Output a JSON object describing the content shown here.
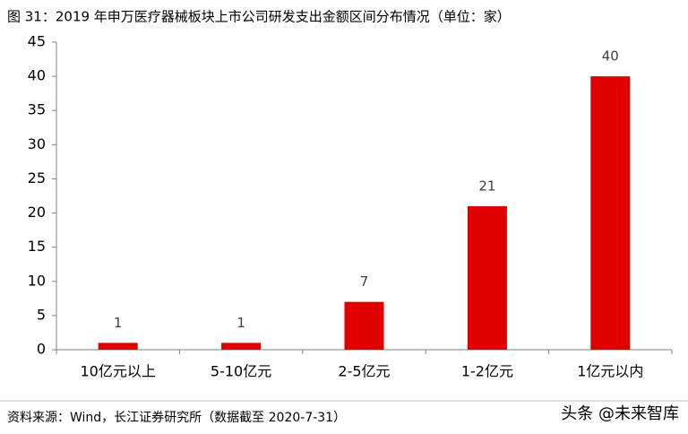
{
  "chart_data": {
    "type": "bar",
    "title": "图 31：2019 年申万医疗器械板块上市公司研发支出金额区间分布情况（单位：家）",
    "categories": [
      "10亿元以上",
      "5-10亿元",
      "2-5亿元",
      "1-2亿元",
      "1亿元以内"
    ],
    "values": [
      1,
      1,
      7,
      21,
      40
    ],
    "color": "#e00000",
    "ylim": [
      0,
      45
    ],
    "yticks": [
      0,
      5,
      10,
      15,
      20,
      25,
      30,
      35,
      40,
      45
    ],
    "grid": false,
    "source": "资料来源：Wind，长江证券研究所（数据截至 2020-7-31）",
    "watermark": "头条 @未来智库"
  }
}
